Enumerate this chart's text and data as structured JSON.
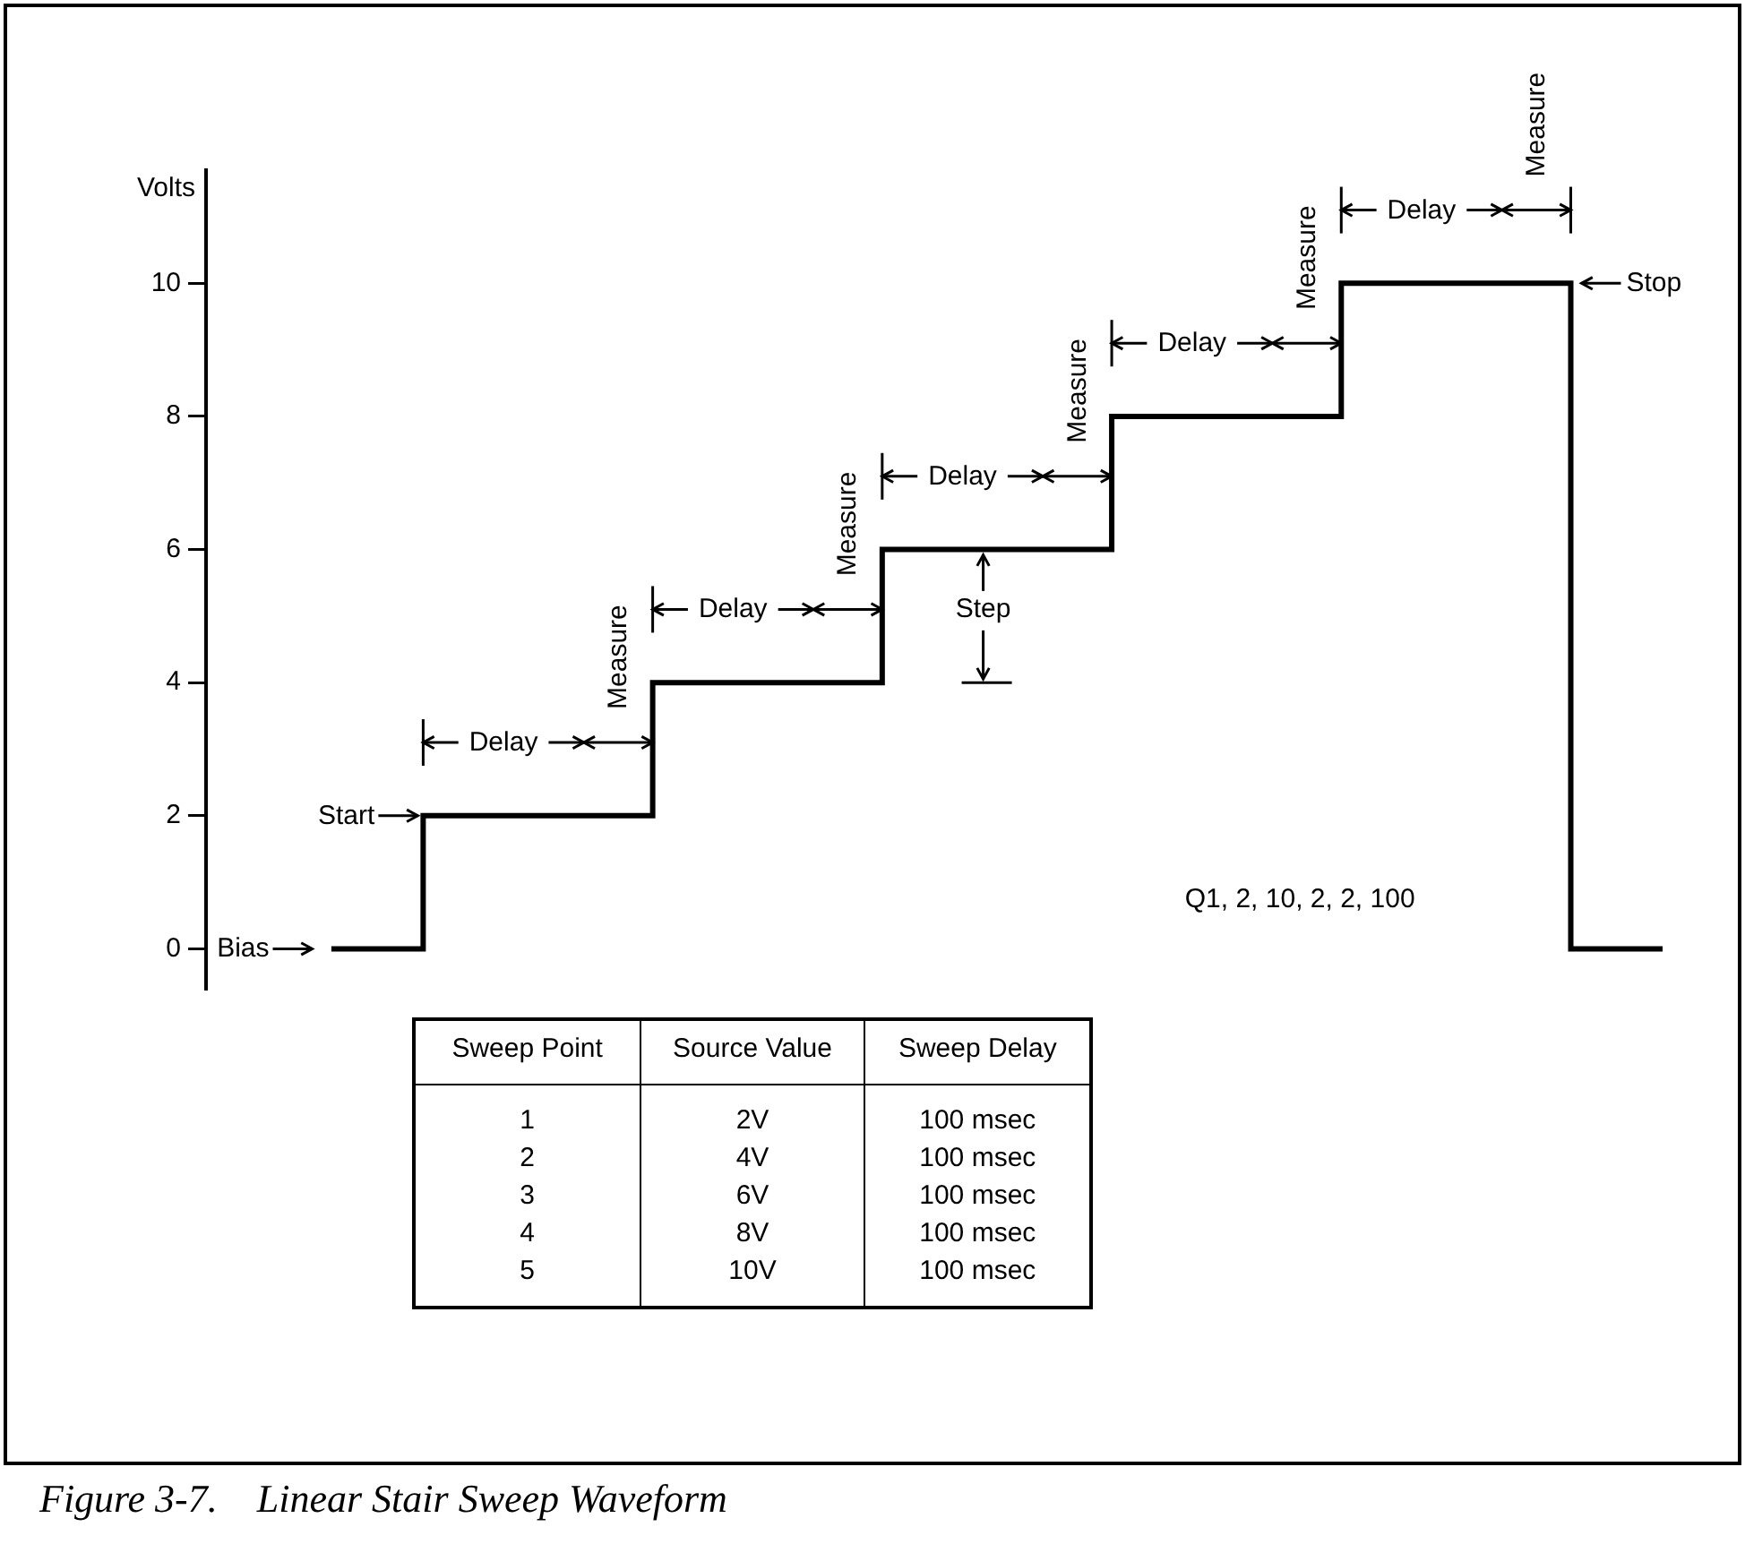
{
  "chart_data": {
    "type": "step",
    "title": "Figure 3-7.    Linear Stair Sweep Waveform",
    "ylabel": "Volts",
    "categories": [
      null,
      null,
      null,
      null,
      null,
      null,
      null,
      null,
      null,
      null,
      null,
      null,
      null,
      null,
      null,
      null,
      null,
      null,
      null,
      null,
      null,
      null,
      null,
      null,
      null,
      null,
      null,
      null,
      null,
      null
    ],
    "values": [
      0,
      0,
      2,
      2,
      2,
      2,
      2,
      4,
      4,
      4,
      4,
      4,
      6,
      6,
      6,
      6,
      6,
      8,
      8,
      8,
      8,
      8,
      10,
      10,
      10,
      10,
      10,
      0,
      0,
      0
    ],
    "color": "#000000",
    "ylim": [
      -0.6,
      11.7
    ],
    "yticks": [
      0,
      2,
      4,
      6,
      8,
      10
    ],
    "tick_labels": "y",
    "grid": false,
    "legend": false,
    "annotations": [
      "Bias",
      "Start",
      "Stop",
      "Delay",
      "Delay",
      "Delay",
      "Delay",
      "Delay",
      "Measure",
      "Measure",
      "Measure",
      "Measure",
      "Measure",
      "Step",
      "Q1, 2, 10, 2, 2, 100",
      "Sweep Point",
      "Source Value",
      "Sweep Delay",
      "1",
      "2V",
      "100 msec",
      "2",
      "4V",
      "100 msec",
      "3",
      "6V",
      "100 msec",
      "4",
      "8V",
      "100 msec",
      "5",
      "10V",
      "100 msec"
    ]
  }
}
